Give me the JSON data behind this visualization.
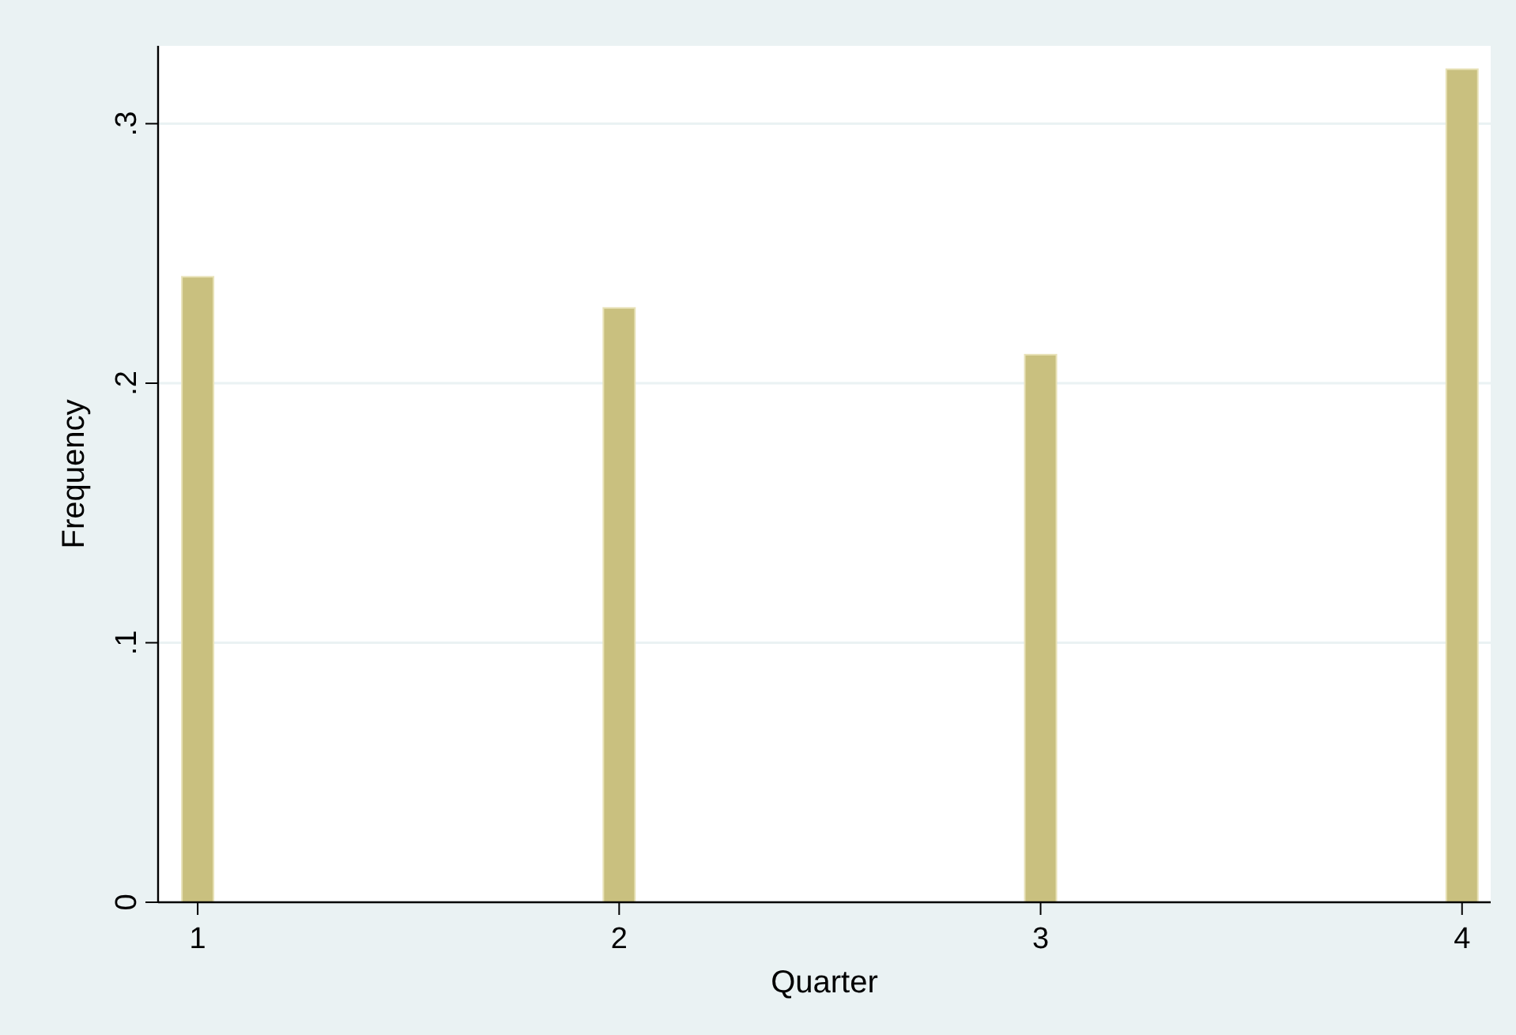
{
  "chart_data": {
    "type": "bar",
    "xlabel": "Quarter",
    "ylabel": "Frequency",
    "x": [
      1,
      2,
      3,
      4
    ],
    "values": [
      0.241,
      0.229,
      0.211,
      0.321
    ],
    "color": "#c9c07f",
    "xlim": [
      0.906,
      4.068
    ],
    "xticks": [
      1,
      2,
      3,
      4
    ],
    "ylim": [
      0,
      0.33
    ],
    "yticks": [
      {
        "value": 0,
        "label": "0"
      },
      {
        "value": 0.1,
        "label": ".1"
      },
      {
        "value": 0.2,
        "label": ".2"
      },
      {
        "value": 0.3,
        "label": ".3"
      }
    ],
    "grid": "y"
  }
}
